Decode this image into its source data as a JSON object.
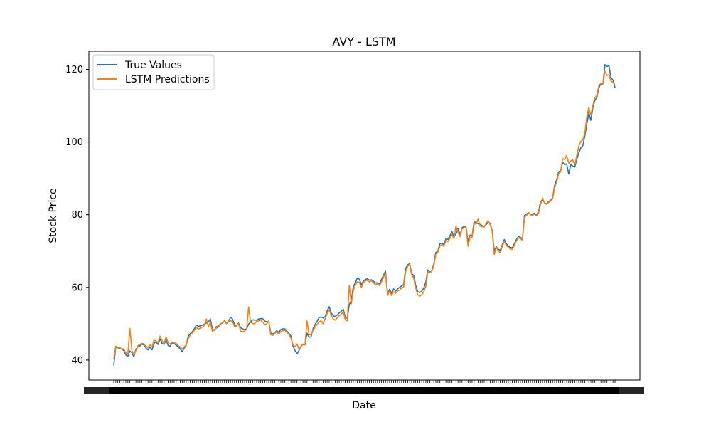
{
  "chart_data": {
    "type": "line",
    "title": "AVY - LSTM",
    "xlabel": "Date",
    "ylabel": "Stock Price",
    "ylim": [
      34.5,
      125
    ],
    "y_ticks": [
      40,
      60,
      80,
      100,
      120
    ],
    "x_tick_labels_overlapping": true,
    "grid": false,
    "legend_position": "top-left",
    "series": [
      {
        "name": "True Values",
        "color": "#1f77b4",
        "values": [
          38.5,
          43.6,
          43.4,
          43.2,
          43.0,
          42.6,
          41.4,
          41.0,
          42.5,
          42.0,
          40.9,
          43.0,
          43.6,
          43.9,
          44.4,
          44.2,
          43.3,
          42.8,
          43.6,
          42.8,
          44.6,
          45.0,
          44.3,
          45.8,
          44.6,
          44.3,
          45.6,
          44.0,
          43.8,
          44.7,
          44.5,
          44.1,
          43.6,
          43.1,
          42.3,
          43.3,
          44.0,
          46.6,
          47.3,
          47.8,
          48.6,
          49.6,
          49.3,
          49.4,
          49.6,
          49.9,
          50.2,
          50.5,
          51.3,
          48.6,
          48.2,
          49.2,
          49.3,
          50.0,
          50.2,
          50.8,
          50.2,
          50.6,
          51.8,
          51.3,
          49.7,
          49.5,
          50.2,
          48.9,
          48.6,
          48.4,
          48.6,
          49.9,
          50.5,
          51.1,
          51.0,
          51.0,
          51.3,
          51.4,
          51.4,
          50.7,
          50.5,
          50.6,
          47.6,
          47.2,
          47.6,
          48.1,
          47.6,
          48.4,
          48.6,
          48.6,
          48.0,
          47.4,
          46.6,
          43.9,
          42.7,
          41.7,
          42.6,
          43.8,
          44.3,
          44.2,
          47.4,
          46.3,
          46.4,
          48.6,
          49.8,
          50.7,
          51.7,
          51.9,
          51.6,
          52.0,
          53.5,
          54.7,
          53.0,
          52.2,
          52.0,
          52.4,
          53.0,
          53.4,
          54.0,
          51.8,
          51.5,
          55.3,
          56.4,
          60.2,
          61.3,
          62.6,
          62.3,
          60.7,
          61.8,
          62.2,
          62.4,
          62.0,
          62.1,
          61.7,
          61.2,
          61.3,
          61.0,
          62.2,
          63.4,
          64.5,
          58.2,
          59.5,
          58.4,
          59.6,
          59.0,
          59.6,
          60.0,
          60.4,
          60.8,
          65.2,
          66.2,
          66.5,
          63.8,
          63.3,
          60.6,
          58.8,
          58.6,
          59.0,
          59.8,
          61.5,
          64.8,
          64.2,
          64.5,
          66.5,
          69.6,
          70.0,
          72.0,
          72.2,
          71.8,
          73.4,
          73.2,
          74.2,
          75.3,
          74.0,
          74.7,
          76.2,
          74.5,
          76.4,
          76.8,
          76.5,
          72.6,
          74.4,
          74.2,
          78.0,
          77.9,
          77.5,
          77.3,
          77.0,
          76.8,
          77.3,
          77.9,
          77.6,
          75.5,
          70.1,
          71.2,
          70.5,
          70.2,
          71.7,
          73.2,
          72.0,
          71.4,
          71.0,
          70.9,
          72.0,
          73.2,
          74.0,
          73.8,
          73.4,
          79.8,
          80.2,
          80.5,
          80.0,
          80.2,
          80.4,
          80.0,
          80.8,
          83.6,
          84.2,
          83.3,
          83.0,
          83.6,
          84.0,
          84.6,
          88.1,
          89.6,
          91.8,
          92.2,
          94.4,
          93.8,
          94.0,
          91.2,
          93.8,
          93.4,
          93.1,
          95.2,
          97.0,
          98.4,
          99.0,
          101.6,
          105.0,
          108.0,
          106.0,
          109.5,
          111.5,
          112.3,
          115.0,
          116.0,
          116.0,
          121.3,
          120.8,
          121.0,
          117.8,
          117.0,
          115.0
        ]
      },
      {
        "name": "LSTM Predictions",
        "color": "#ff7f0e",
        "values": [
          40.2,
          43.8,
          43.5,
          43.4,
          43.1,
          43.0,
          42.0,
          41.6,
          48.7,
          42.6,
          41.4,
          42.6,
          44.0,
          44.3,
          44.6,
          44.4,
          43.8,
          43.4,
          44.2,
          43.6,
          45.5,
          45.2,
          44.8,
          46.6,
          45.3,
          44.6,
          46.4,
          44.8,
          44.4,
          44.9,
          44.8,
          44.6,
          44.0,
          43.6,
          43.0,
          43.6,
          44.2,
          45.8,
          46.9,
          47.4,
          48.2,
          49.0,
          48.5,
          48.8,
          49.1,
          49.5,
          51.3,
          49.2,
          50.4,
          47.9,
          48.4,
          48.8,
          49.1,
          49.8,
          50.4,
          50.8,
          50.0,
          50.6,
          50.8,
          50.7,
          49.2,
          49.3,
          50.0,
          48.0,
          47.8,
          48.0,
          48.4,
          54.6,
          50.4,
          50.1,
          50.0,
          50.7,
          50.8,
          51.0,
          50.5,
          49.8,
          50.0,
          50.8,
          47.0,
          46.8,
          47.4,
          47.8,
          47.2,
          47.8,
          48.1,
          48.2,
          47.6,
          47.1,
          46.0,
          44.2,
          43.6,
          44.4,
          43.0,
          43.7,
          44.4,
          44.2,
          50.8,
          47.1,
          46.9,
          48.2,
          49.0,
          49.8,
          50.6,
          50.8,
          50.0,
          51.4,
          52.8,
          53.8,
          52.4,
          51.3,
          51.0,
          51.6,
          52.2,
          52.6,
          53.4,
          51.1,
          50.8,
          60.6,
          55.5,
          59.1,
          60.6,
          61.6,
          61.4,
          60.0,
          61.4,
          61.8,
          62.0,
          61.5,
          61.8,
          61.3,
          60.7,
          61.0,
          60.5,
          61.6,
          62.8,
          63.9,
          57.8,
          59.0,
          57.8,
          58.8,
          58.4,
          59.0,
          59.3,
          59.8,
          60.1,
          64.3,
          65.8,
          66.3,
          63.4,
          62.5,
          59.8,
          58.0,
          57.6,
          58.0,
          58.8,
          60.3,
          64.2,
          64.0,
          64.5,
          66.0,
          69.0,
          69.6,
          71.4,
          71.8,
          71.3,
          72.9,
          72.6,
          73.5,
          74.6,
          73.4,
          76.9,
          75.2,
          74.0,
          76.1,
          76.4,
          76.6,
          71.3,
          73.8,
          73.8,
          77.5,
          77.4,
          78.8,
          76.9,
          76.7,
          76.6,
          77.6,
          78.4,
          77.2,
          75.3,
          69.0,
          71.0,
          70.1,
          69.5,
          71.3,
          72.6,
          71.6,
          71.0,
          70.6,
          70.5,
          71.6,
          72.8,
          73.6,
          73.4,
          73.0,
          79.2,
          79.8,
          80.6,
          80.0,
          79.8,
          80.2,
          79.7,
          80.4,
          82.8,
          84.6,
          83.2,
          82.9,
          83.4,
          83.8,
          84.4,
          87.4,
          89.0,
          91.2,
          91.8,
          95.4,
          95.2,
          96.3,
          94.2,
          94.8,
          95.1,
          93.8,
          96.2,
          98.8,
          100.2,
          100.6,
          102.4,
          107.0,
          109.5,
          107.4,
          110.2,
          112.3,
          112.8,
          115.6,
          116.2,
          116.0,
          119.5,
          118.3,
          118.6,
          116.8,
          116.4,
          116.0
        ]
      }
    ]
  }
}
